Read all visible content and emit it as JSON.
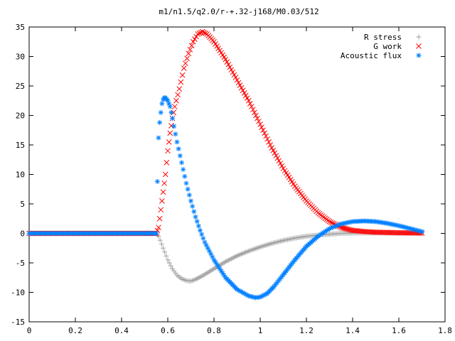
{
  "chart_data": {
    "type": "scatter",
    "title": "m1/n1.5/q2.0/r-+.32-j168/M0.03/512",
    "xlabel": "",
    "ylabel": "",
    "xlim": [
      0,
      1.8
    ],
    "ylim": [
      -15,
      35
    ],
    "xticks": [
      "0",
      "0.2",
      "0.4",
      "0.6",
      "0.8",
      "1",
      "1.2",
      "1.4",
      "1.6",
      "1.8"
    ],
    "yticks": [
      "-15",
      "-10",
      "-5",
      "0",
      "5",
      "10",
      "15",
      "20",
      "25",
      "30",
      "35"
    ],
    "grid": false,
    "legend_position": "top-right",
    "series": [
      {
        "name": "R stress",
        "marker": "+",
        "color": "#a0a0a0",
        "points": [
          [
            0,
            0
          ],
          [
            0.5,
            0
          ],
          [
            0.55,
            0
          ],
          [
            0.56,
            -0.5
          ],
          [
            0.58,
            -2.5
          ],
          [
            0.6,
            -4.5
          ],
          [
            0.62,
            -6
          ],
          [
            0.64,
            -7.1
          ],
          [
            0.66,
            -7.7
          ],
          [
            0.68,
            -8
          ],
          [
            0.7,
            -8.1
          ],
          [
            0.72,
            -7.8
          ],
          [
            0.75,
            -7.2
          ],
          [
            0.8,
            -6
          ],
          [
            0.85,
            -4.8
          ],
          [
            0.9,
            -3.8
          ],
          [
            0.95,
            -3
          ],
          [
            1.0,
            -2.3
          ],
          [
            1.05,
            -1.7
          ],
          [
            1.1,
            -1.2
          ],
          [
            1.15,
            -0.8
          ],
          [
            1.2,
            -0.5
          ],
          [
            1.25,
            -0.3
          ],
          [
            1.3,
            -0.15
          ],
          [
            1.35,
            0
          ],
          [
            1.4,
            0.05
          ],
          [
            1.5,
            0.08
          ],
          [
            1.6,
            0.08
          ],
          [
            1.7,
            0.1
          ]
        ]
      },
      {
        "name": "G work",
        "marker": "x",
        "color": "#ff0000",
        "points": [
          [
            0,
            0
          ],
          [
            0.5,
            0
          ],
          [
            0.55,
            0
          ],
          [
            0.56,
            1
          ],
          [
            0.57,
            4
          ],
          [
            0.58,
            7
          ],
          [
            0.59,
            10
          ],
          [
            0.6,
            14
          ],
          [
            0.61,
            17
          ],
          [
            0.62,
            19.5
          ],
          [
            0.63,
            21.5
          ],
          [
            0.65,
            24.5
          ],
          [
            0.67,
            28
          ],
          [
            0.69,
            30.5
          ],
          [
            0.71,
            32.5
          ],
          [
            0.73,
            33.8
          ],
          [
            0.75,
            34.2
          ],
          [
            0.77,
            33.8
          ],
          [
            0.8,
            32.5
          ],
          [
            0.85,
            29.5
          ],
          [
            0.9,
            26
          ],
          [
            0.95,
            22.5
          ],
          [
            1.0,
            18.5
          ],
          [
            1.05,
            14.5
          ],
          [
            1.1,
            11
          ],
          [
            1.15,
            8
          ],
          [
            1.2,
            5.5
          ],
          [
            1.25,
            3.5
          ],
          [
            1.3,
            2
          ],
          [
            1.35,
            1
          ],
          [
            1.4,
            0.5
          ],
          [
            1.45,
            0.3
          ],
          [
            1.5,
            0.2
          ],
          [
            1.6,
            0.1
          ],
          [
            1.7,
            0.05
          ]
        ]
      },
      {
        "name": "Acoustic flux",
        "marker": "*",
        "color": "#0080ff",
        "points": [
          [
            0,
            0
          ],
          [
            0.5,
            0
          ],
          [
            0.55,
            0
          ],
          [
            0.555,
            8.8
          ],
          [
            0.56,
            16.2
          ],
          [
            0.565,
            18.8
          ],
          [
            0.57,
            20.5
          ],
          [
            0.575,
            22
          ],
          [
            0.58,
            22.7
          ],
          [
            0.585,
            23
          ],
          [
            0.59,
            23
          ],
          [
            0.6,
            22.5
          ],
          [
            0.61,
            21.5
          ],
          [
            0.62,
            19.5
          ],
          [
            0.64,
            15.5
          ],
          [
            0.66,
            12
          ],
          [
            0.68,
            8.5
          ],
          [
            0.7,
            5.5
          ],
          [
            0.72,
            2.8
          ],
          [
            0.74,
            0.5
          ],
          [
            0.76,
            -1.5
          ],
          [
            0.8,
            -4.5
          ],
          [
            0.85,
            -7.5
          ],
          [
            0.9,
            -9.5
          ],
          [
            0.95,
            -10.6
          ],
          [
            0.98,
            -10.9
          ],
          [
            1.0,
            -10.8
          ],
          [
            1.03,
            -10.2
          ],
          [
            1.06,
            -9
          ],
          [
            1.1,
            -7
          ],
          [
            1.15,
            -4.5
          ],
          [
            1.2,
            -2.2
          ],
          [
            1.25,
            -0.5
          ],
          [
            1.3,
            0.8
          ],
          [
            1.35,
            1.6
          ],
          [
            1.4,
            2
          ],
          [
            1.45,
            2.1
          ],
          [
            1.5,
            2
          ],
          [
            1.55,
            1.7
          ],
          [
            1.6,
            1.3
          ],
          [
            1.65,
            0.8
          ],
          [
            1.7,
            0.3
          ]
        ]
      }
    ]
  }
}
